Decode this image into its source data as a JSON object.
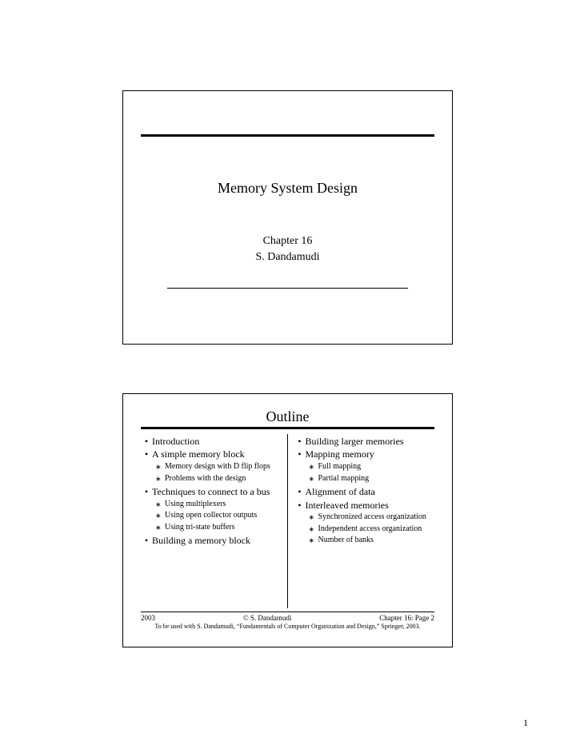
{
  "slide1": {
    "title": "Memory System Design",
    "chapter": "Chapter 16",
    "author": "S. Dandamudi"
  },
  "slide2": {
    "title": "Outline",
    "left": {
      "i0": "Introduction",
      "i1": "A simple memory block",
      "i1a": "Memory design with D flip flops",
      "i1b": "Problems with the design",
      "i2": "Techniques to connect to a bus",
      "i2a": "Using multiplexers",
      "i2b": "Using open collector outputs",
      "i2c": "Using tri-state buffers",
      "i3": "Building a memory block"
    },
    "right": {
      "i0": "Building larger memories",
      "i1": "Mapping memory",
      "i1a": "Full mapping",
      "i1b": "Partial mapping",
      "i2": "Alignment of data",
      "i3": "Interleaved memories",
      "i3a": "Synchronized access organization",
      "i3b": "Independent access organization",
      "i3c": "Number of banks"
    },
    "footer": {
      "year": "2003",
      "copy": "© S. Dandamudi",
      "page": "Chapter 16: Page 2",
      "note": "To be used with S. Dandamudi, “Fundamentals of Computer Organization and Design,” Springer, 2003."
    }
  },
  "pagenum": "1"
}
